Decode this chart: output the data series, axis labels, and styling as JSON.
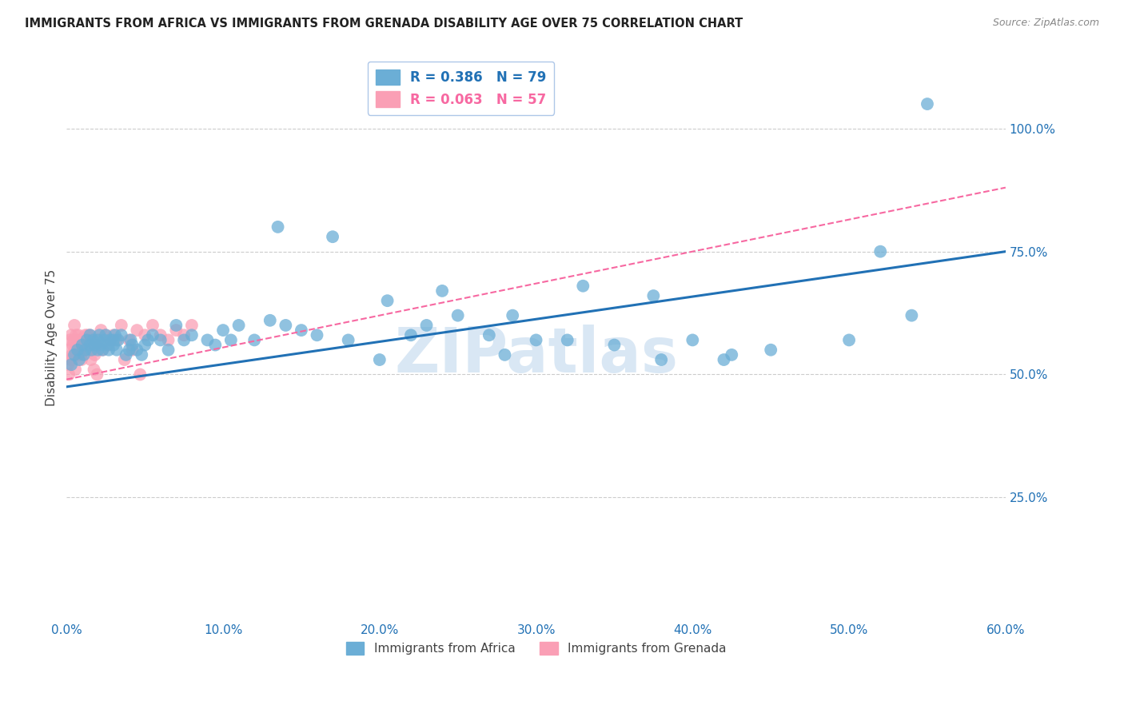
{
  "title": "IMMIGRANTS FROM AFRICA VS IMMIGRANTS FROM GRENADA DISABILITY AGE OVER 75 CORRELATION CHART",
  "source": "Source: ZipAtlas.com",
  "ylabel": "Disability Age Over 75",
  "x_tick_labels": [
    "0.0%",
    "10.0%",
    "20.0%",
    "30.0%",
    "40.0%",
    "50.0%",
    "60.0%"
  ],
  "x_tick_vals": [
    0,
    10,
    20,
    30,
    40,
    50,
    60
  ],
  "y_tick_labels": [
    "25.0%",
    "50.0%",
    "75.0%",
    "100.0%"
  ],
  "y_tick_vals": [
    25,
    50,
    75,
    100
  ],
  "xlim": [
    0,
    60
  ],
  "ylim": [
    0,
    115
  ],
  "legend_africa_R": "R = 0.386",
  "legend_africa_N": "N = 79",
  "legend_grenada_R": "R = 0.063",
  "legend_grenada_N": "N = 57",
  "africa_color": "#6baed6",
  "grenada_color": "#fa9fb5",
  "trendline_africa_color": "#2171b5",
  "trendline_grenada_color": "#f768a1",
  "grid_color": "#cccccc",
  "title_color": "#222222",
  "tick_label_color": "#2171b5",
  "watermark_color": "#c6dbef",
  "legend_frame_color": "#aec7e8",
  "africa_trendline": [
    47.5,
    75.0
  ],
  "grenada_trendline": [
    49.0,
    88.0
  ],
  "africa_x": [
    0.3,
    0.5,
    0.7,
    0.8,
    1.0,
    1.1,
    1.2,
    1.3,
    1.5,
    1.5,
    1.6,
    1.7,
    1.8,
    2.0,
    2.0,
    2.1,
    2.2,
    2.3,
    2.4,
    2.5,
    2.6,
    2.7,
    2.8,
    3.0,
    3.0,
    3.1,
    3.2,
    3.3,
    3.5,
    3.8,
    4.0,
    4.1,
    4.2,
    4.5,
    4.8,
    5.0,
    5.2,
    5.5,
    6.0,
    6.5,
    7.0,
    7.5,
    8.0,
    9.0,
    9.5,
    10.0,
    10.5,
    11.0,
    12.0,
    13.0,
    14.0,
    15.0,
    16.0,
    18.0,
    20.0,
    22.0,
    23.0,
    25.0,
    27.0,
    28.0,
    30.0,
    32.0,
    35.0,
    38.0,
    40.0,
    42.0,
    45.0,
    50.0,
    52.0,
    54.0,
    13.5,
    17.0,
    20.5,
    24.0,
    28.5,
    33.0,
    37.5,
    42.5,
    55.0
  ],
  "africa_y": [
    52,
    54,
    55,
    53,
    56,
    54,
    55,
    57,
    56,
    58,
    55,
    57,
    56,
    55,
    57,
    58,
    56,
    55,
    57,
    58,
    56,
    55,
    57,
    56,
    57,
    58,
    55,
    57,
    58,
    54,
    55,
    57,
    56,
    55,
    54,
    56,
    57,
    58,
    57,
    55,
    60,
    57,
    58,
    57,
    56,
    59,
    57,
    60,
    57,
    61,
    60,
    59,
    58,
    57,
    53,
    58,
    60,
    62,
    58,
    54,
    57,
    57,
    56,
    53,
    57,
    53,
    55,
    57,
    75,
    62,
    80,
    78,
    65,
    67,
    62,
    68,
    66,
    54,
    105
  ],
  "grenada_x": [
    0.1,
    0.15,
    0.2,
    0.25,
    0.3,
    0.35,
    0.4,
    0.45,
    0.5,
    0.55,
    0.6,
    0.7,
    0.75,
    0.8,
    0.85,
    0.9,
    1.0,
    1.1,
    1.2,
    1.3,
    1.4,
    1.5,
    1.6,
    1.7,
    1.8,
    1.9,
    2.0,
    2.2,
    2.5,
    2.8,
    3.0,
    3.5,
    4.0,
    4.5,
    5.0,
    5.5,
    6.0,
    6.5,
    7.0,
    7.5,
    8.0,
    0.15,
    0.35,
    0.55,
    0.75,
    0.95,
    1.15,
    1.35,
    1.55,
    1.75,
    1.95,
    2.3,
    2.7,
    3.2,
    3.7,
    4.2,
    4.7
  ],
  "grenada_y": [
    52,
    55,
    57,
    53,
    58,
    54,
    56,
    57,
    60,
    55,
    58,
    56,
    58,
    55,
    57,
    54,
    56,
    57,
    58,
    57,
    56,
    58,
    57,
    55,
    54,
    56,
    57,
    59,
    58,
    57,
    58,
    60,
    57,
    59,
    58,
    60,
    58,
    57,
    59,
    58,
    60,
    50,
    53,
    51,
    54,
    53,
    55,
    58,
    53,
    51,
    50,
    55,
    56,
    57,
    53,
    55,
    50
  ]
}
